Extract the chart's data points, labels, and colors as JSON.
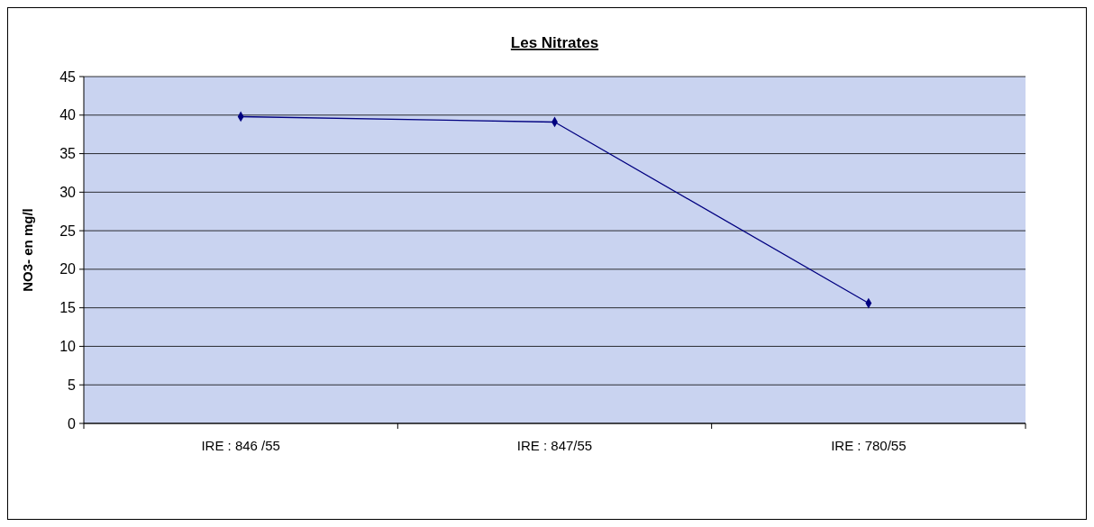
{
  "chart_data": {
    "type": "line",
    "title": "Les Nitrates",
    "ylabel": "NO3- en mg/l",
    "categories": [
      "IRE : 846 /55",
      "IRE : 847/55",
      "IRE : 780/55"
    ],
    "series": [
      {
        "color": "#000080",
        "values": [
          39.8,
          39.1,
          15.6
        ]
      }
    ],
    "ylim": [
      0,
      45
    ],
    "yticks": [
      0,
      5,
      10,
      15,
      20,
      25,
      30,
      35,
      40,
      45
    ],
    "grid": "y",
    "marker": "diamond",
    "line_style": "solid"
  }
}
